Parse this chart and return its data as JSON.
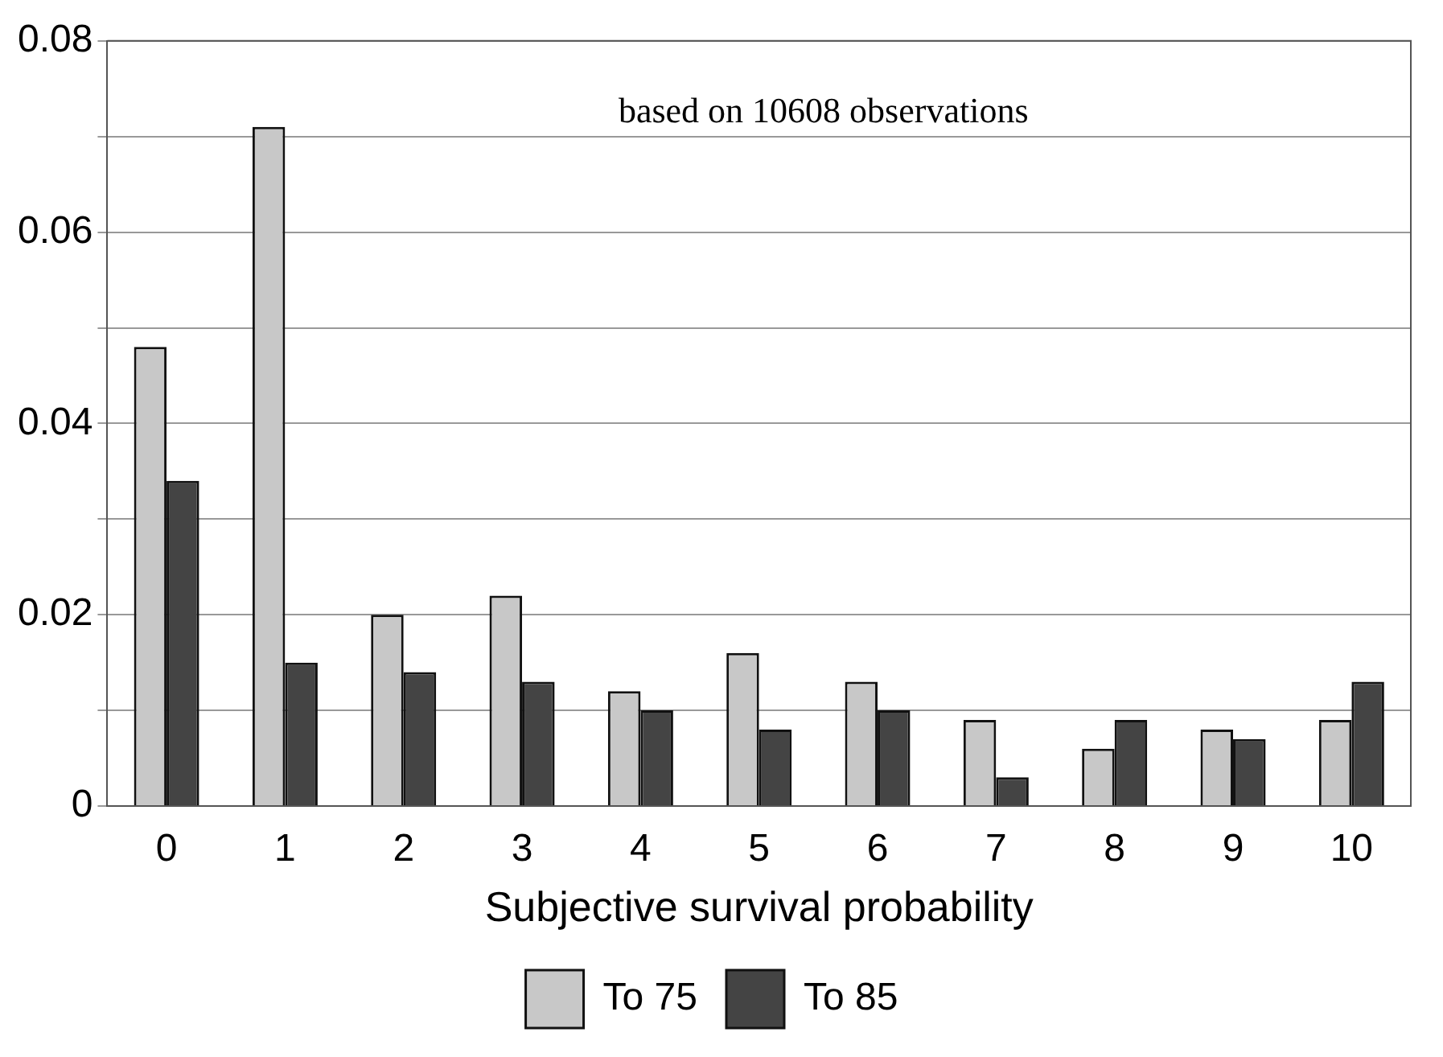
{
  "chart_data": {
    "type": "bar",
    "xlabel": "Subjective survival probability",
    "annotations": [
      "based on 10608 observations"
    ],
    "categories": [
      "0",
      "1",
      "2",
      "3",
      "4",
      "5",
      "6",
      "7",
      "8",
      "9",
      "10"
    ],
    "series": [
      {
        "name": "To 75",
        "color": "#c8c8c8",
        "values": [
          0.048,
          0.071,
          0.02,
          0.022,
          0.012,
          0.016,
          0.013,
          0.009,
          0.006,
          0.008,
          0.009
        ]
      },
      {
        "name": "To 85",
        "color": "#444444",
        "values": [
          0.034,
          0.015,
          0.014,
          0.013,
          0.01,
          0.008,
          0.01,
          0.003,
          0.009,
          0.007,
          0.013
        ]
      }
    ],
    "ylim": [
      0,
      0.08
    ],
    "yticks": [
      0,
      {
        "value": 0.01,
        "label": null
      },
      0.02,
      {
        "value": 0.03,
        "label": null
      },
      0.04,
      {
        "value": 0.05,
        "label": null
      },
      0.06,
      {
        "value": 0.07,
        "label": null
      },
      0.08
    ],
    "grid": "y",
    "legend": "bottom"
  }
}
